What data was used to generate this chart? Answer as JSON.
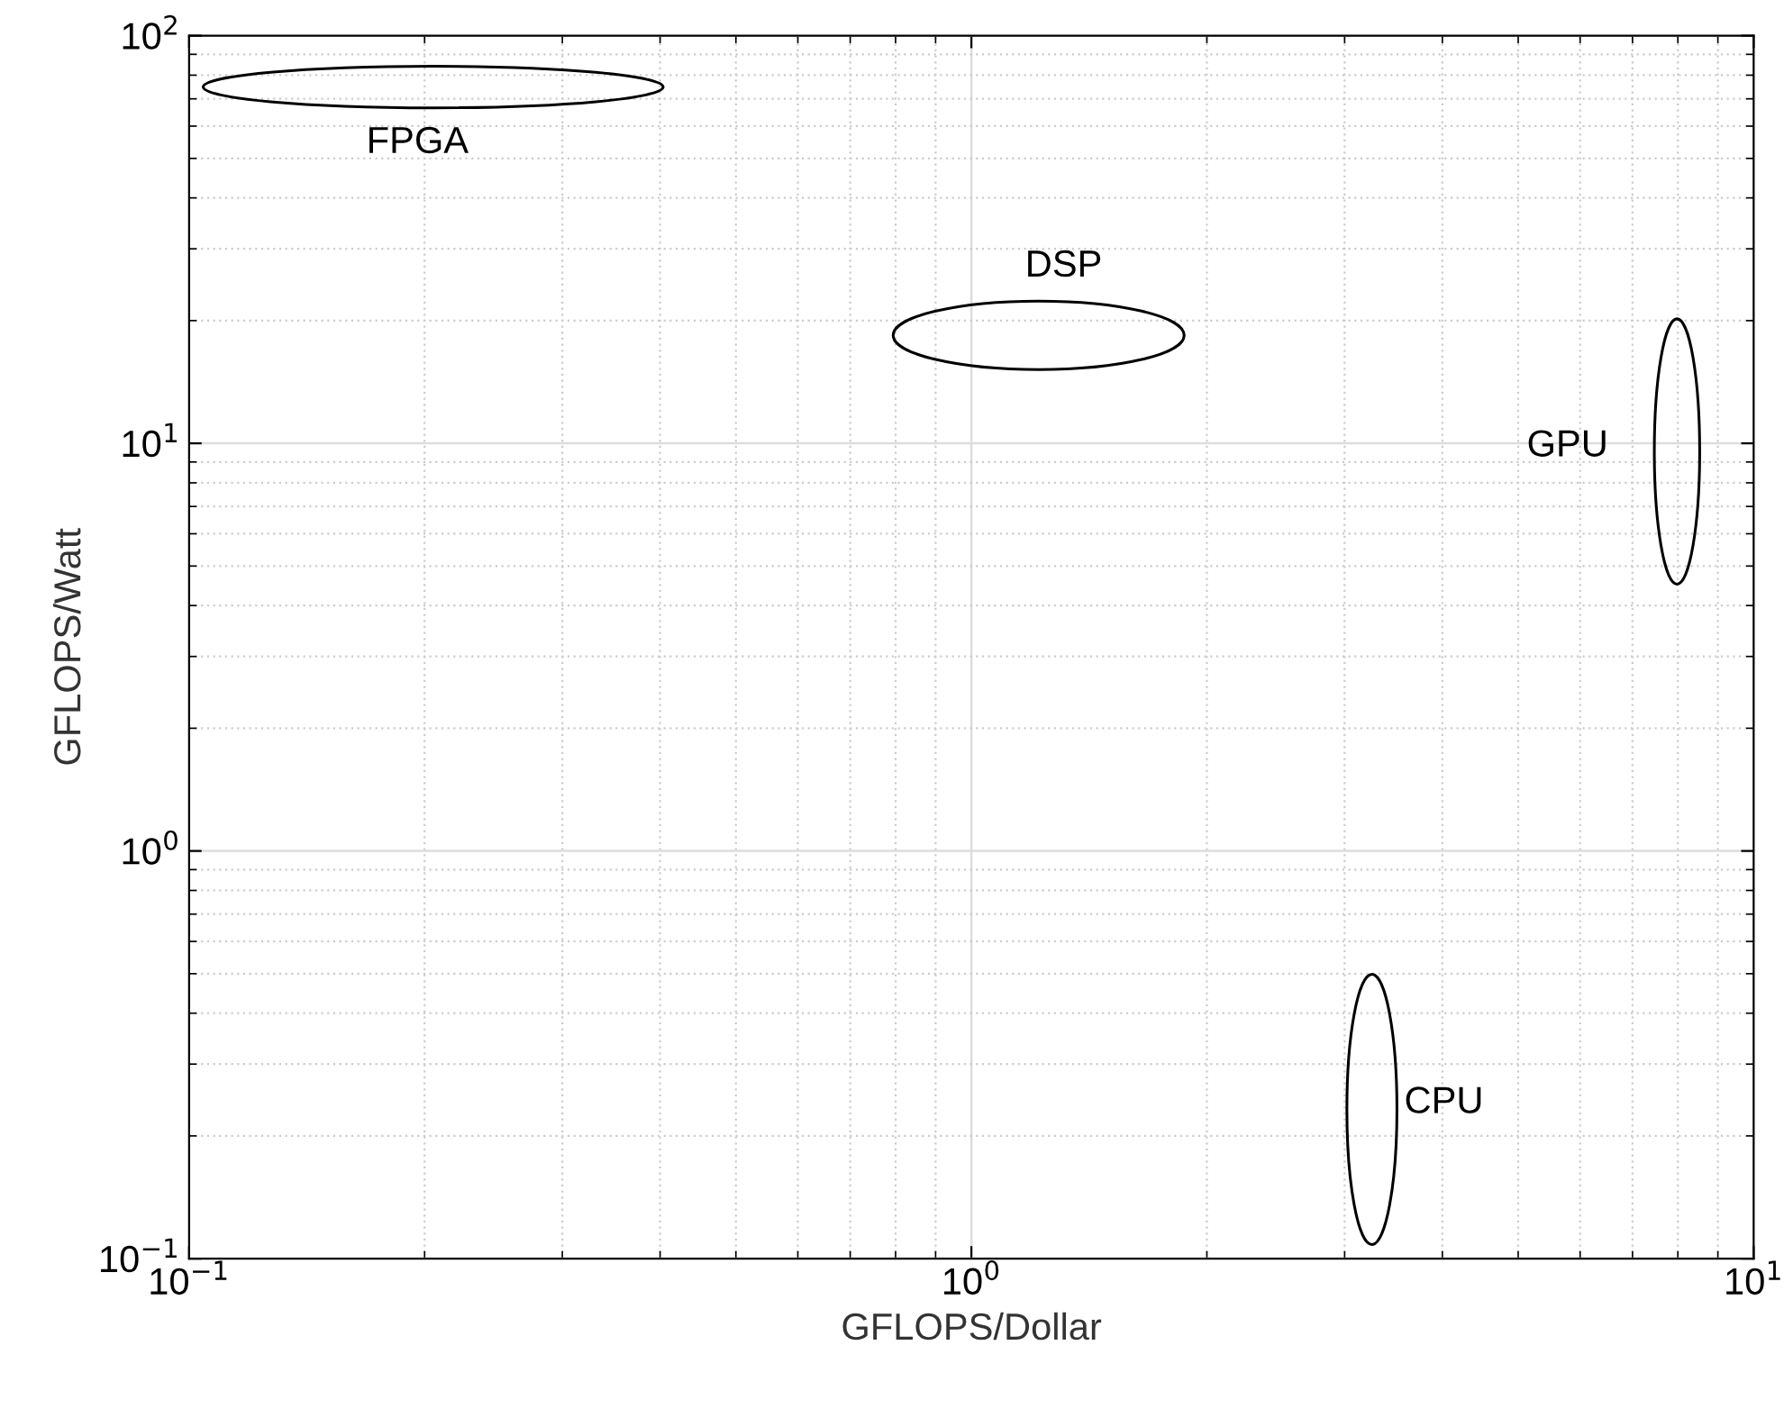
{
  "chart_data": {
    "type": "scatter",
    "log": "xy",
    "xlabel": "GFLOPS/Dollar",
    "ylabel": "GFLOPS/Watt",
    "xlim": [
      0.1,
      10
    ],
    "ylim": [
      0.1,
      100
    ],
    "xticks": [
      {
        "value": 0.1,
        "label": "10$^{−1}$"
      },
      {
        "value": 1,
        "label": "10$^{0}$"
      },
      {
        "value": 10,
        "label": "10$^{1}$"
      }
    ],
    "yticks": [
      {
        "value": 0.1,
        "label": "10$^{−1}$"
      },
      {
        "value": 1,
        "label": "10$^{0}$"
      },
      {
        "value": 10,
        "label": "10$^{1}$"
      },
      {
        "value": 100,
        "label": "10$^{2}$"
      }
    ],
    "grid": true,
    "annotations": [
      "FPGA",
      "DSP",
      "GPU",
      "CPU"
    ]
  }
}
